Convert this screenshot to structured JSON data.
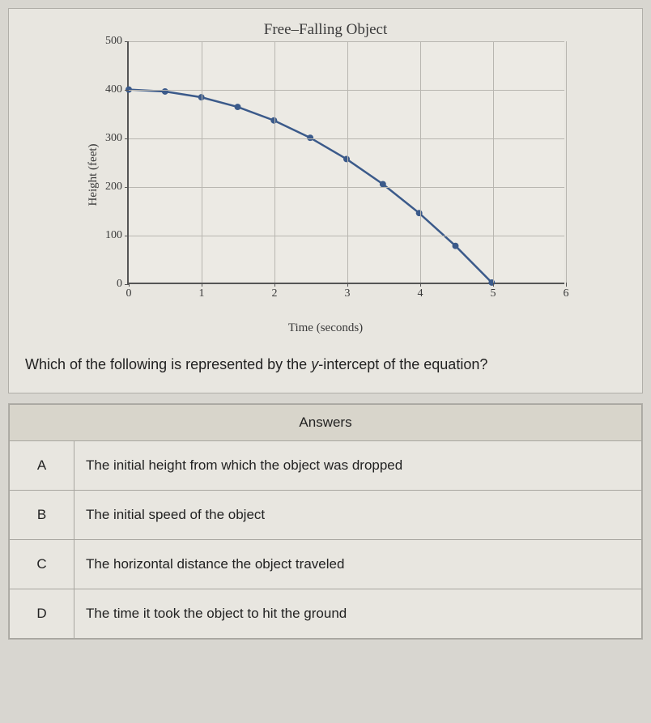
{
  "chart": {
    "type": "line",
    "title": "Free–Falling Object",
    "ylabel": "Height (feet)",
    "xlabel": "Time (seconds)",
    "title_fontsize": 19,
    "label_fontsize": 15,
    "tick_fontsize": 14,
    "xlim": [
      0,
      6
    ],
    "ylim": [
      0,
      500
    ],
    "xticks": [
      0,
      1,
      2,
      3,
      4,
      5,
      6
    ],
    "yticks": [
      0,
      100,
      200,
      300,
      400,
      500
    ],
    "grid_color": "#b8b6b0",
    "axis_color": "#555555",
    "background_color": "#eceae4",
    "line_color": "#3b5a8a",
    "marker_color": "#3b5a8a",
    "line_width": 2.5,
    "marker_radius": 4,
    "points": [
      {
        "x": 0.0,
        "y": 400
      },
      {
        "x": 0.5,
        "y": 396
      },
      {
        "x": 1.0,
        "y": 384
      },
      {
        "x": 1.5,
        "y": 364
      },
      {
        "x": 2.0,
        "y": 336
      },
      {
        "x": 2.5,
        "y": 300
      },
      {
        "x": 3.0,
        "y": 256
      },
      {
        "x": 3.5,
        "y": 204
      },
      {
        "x": 4.0,
        "y": 144
      },
      {
        "x": 4.5,
        "y": 76
      },
      {
        "x": 5.0,
        "y": 0
      }
    ]
  },
  "question": {
    "prefix": "Which of the following is represented by the ",
    "var": "y",
    "suffix": "-intercept of the equation?"
  },
  "answers": {
    "header": "Answers",
    "rows": [
      {
        "letter": "A",
        "text": "The initial height from which the object was dropped"
      },
      {
        "letter": "B",
        "text": "The initial speed of the object"
      },
      {
        "letter": "C",
        "text": "The horizontal distance the object traveled"
      },
      {
        "letter": "D",
        "text": "The time it took the object to hit the ground"
      }
    ]
  }
}
